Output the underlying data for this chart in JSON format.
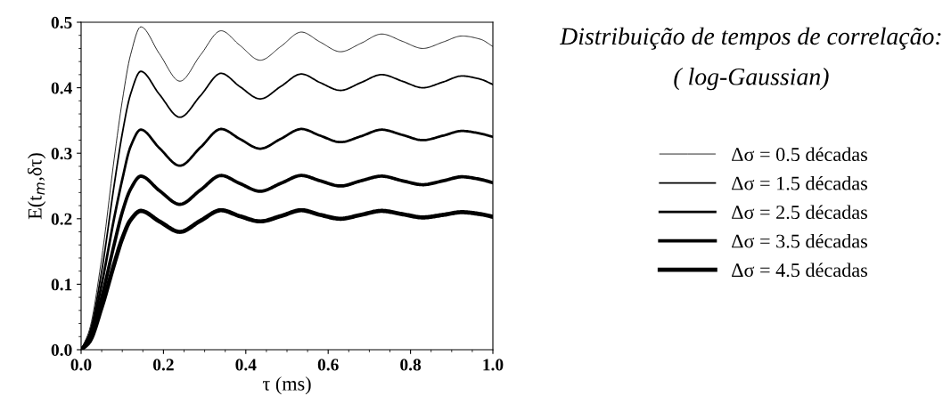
{
  "chart_data": {
    "type": "line",
    "title": "Distribuição de tempos de correlação:",
    "subtitle": "( log-Gaussian)",
    "xlabel": "τ (ms)",
    "ylabel": "E(t$_{m}$,δτ)",
    "x": [
      0,
      0.02,
      0.05,
      0.08,
      0.1,
      0.12,
      0.145,
      0.19,
      0.24,
      0.29,
      0.34,
      0.385,
      0.435,
      0.485,
      0.535,
      0.58,
      0.63,
      0.68,
      0.73,
      0.78,
      0.83,
      0.88,
      0.925,
      0.97,
      1.0
    ],
    "xlim": [
      0,
      1.0
    ],
    "xticks": [
      {
        "value": 0,
        "label": "0.0"
      },
      0.2,
      0.4,
      0.6,
      0.8,
      {
        "value": 1.0,
        "label": "1.0"
      }
    ],
    "ylim": [
      0,
      0.5
    ],
    "yticks": [
      {
        "value": 0,
        "label": "0.0"
      },
      0.1,
      0.2,
      0.3,
      0.4,
      0.5
    ],
    "grid": false,
    "legend": "right",
    "marker": "none",
    "line_style": "solid",
    "series": [
      {
        "name": "Δσ = 0.5 décadas",
        "color": "#000000",
        "values": [
          0,
          0.03,
          0.14,
          0.29,
          0.38,
          0.45,
          0.493,
          0.452,
          0.41,
          0.45,
          0.487,
          0.465,
          0.442,
          0.463,
          0.485,
          0.47,
          0.455,
          0.468,
          0.482,
          0.471,
          0.46,
          0.47,
          0.479,
          0.474,
          0.463
        ]
      },
      {
        "name": "Δσ = 1.5 décadas",
        "color": "#000000",
        "values": [
          0,
          0.025,
          0.12,
          0.25,
          0.33,
          0.39,
          0.425,
          0.39,
          0.355,
          0.388,
          0.422,
          0.402,
          0.383,
          0.402,
          0.421,
          0.408,
          0.396,
          0.408,
          0.42,
          0.41,
          0.4,
          0.409,
          0.418,
          0.413,
          0.405
        ]
      },
      {
        "name": "Δσ = 2.5 décadas",
        "color": "#000000",
        "values": [
          0,
          0.02,
          0.1,
          0.2,
          0.26,
          0.31,
          0.336,
          0.308,
          0.281,
          0.309,
          0.337,
          0.322,
          0.307,
          0.322,
          0.337,
          0.327,
          0.317,
          0.326,
          0.336,
          0.328,
          0.32,
          0.327,
          0.334,
          0.33,
          0.325
        ]
      },
      {
        "name": "Δσ = 3.5 décadas",
        "color": "#000000",
        "values": [
          0,
          0.015,
          0.08,
          0.16,
          0.21,
          0.245,
          0.265,
          0.243,
          0.222,
          0.244,
          0.266,
          0.254,
          0.242,
          0.254,
          0.266,
          0.258,
          0.25,
          0.258,
          0.265,
          0.258,
          0.252,
          0.258,
          0.264,
          0.26,
          0.255
        ]
      },
      {
        "name": "Δσ = 4.5 décadas",
        "color": "#000000",
        "values": [
          0,
          0.012,
          0.065,
          0.13,
          0.17,
          0.198,
          0.212,
          0.196,
          0.18,
          0.197,
          0.213,
          0.204,
          0.196,
          0.204,
          0.213,
          0.206,
          0.2,
          0.206,
          0.212,
          0.207,
          0.202,
          0.206,
          0.21,
          0.207,
          0.203
        ]
      }
    ]
  }
}
